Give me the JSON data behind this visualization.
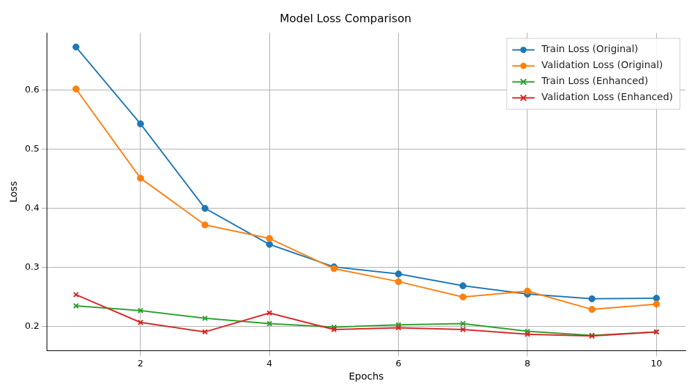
{
  "chart_data": {
    "type": "line",
    "title": "Model Loss Comparison",
    "xlabel": "Epochs",
    "ylabel": "Loss",
    "x": [
      1,
      2,
      3,
      4,
      5,
      6,
      7,
      8,
      9,
      10
    ],
    "series": [
      {
        "name": "Train Loss (Original)",
        "color": "#1f77b4",
        "marker": "circle",
        "values": [
          0.673,
          0.543,
          0.4,
          0.339,
          0.301,
          0.289,
          0.269,
          0.255,
          0.247,
          0.248
        ]
      },
      {
        "name": "Validation Loss (Original)",
        "color": "#ff7f0e",
        "marker": "circle",
        "values": [
          0.602,
          0.451,
          0.372,
          0.349,
          0.298,
          0.276,
          0.25,
          0.26,
          0.229,
          0.238
        ]
      },
      {
        "name": "Train Loss (Enhanced)",
        "color": "#2ca02c",
        "marker": "cross",
        "values": [
          0.235,
          0.227,
          0.214,
          0.205,
          0.199,
          0.203,
          0.205,
          0.192,
          0.185,
          0.191
        ]
      },
      {
        "name": "Validation Loss (Enhanced)",
        "color": "#d62728",
        "marker": "cross",
        "values": [
          0.254,
          0.207,
          0.191,
          0.223,
          0.195,
          0.198,
          0.195,
          0.187,
          0.184,
          0.191
        ]
      }
    ],
    "xlim": [
      0.55,
      10.45
    ],
    "ylim": [
      0.159,
      0.697
    ],
    "xticks": [
      2,
      4,
      6,
      8,
      10
    ],
    "yticks": [
      0.2,
      0.3,
      0.4,
      0.5,
      0.6
    ],
    "grid": true,
    "legend": "top right",
    "line_style": "solid"
  }
}
